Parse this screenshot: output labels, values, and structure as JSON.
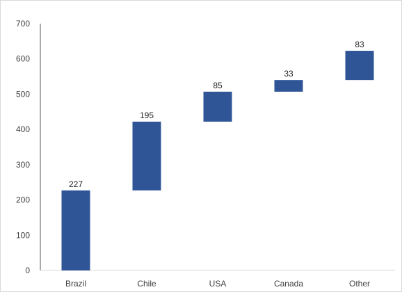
{
  "chart_data": {
    "type": "bar",
    "subtype": "waterfall",
    "title": "",
    "xlabel": "",
    "ylabel": "",
    "categories": [
      "Brazil",
      "Chile",
      "USA",
      "Canada",
      "Other"
    ],
    "values": [
      227,
      195,
      85,
      33,
      83
    ],
    "ylim": [
      0,
      700
    ],
    "yticks": [
      0,
      100,
      200,
      300,
      400,
      500,
      600,
      700
    ],
    "grid": false,
    "legend": "none",
    "bar_color": "#2F5597"
  }
}
